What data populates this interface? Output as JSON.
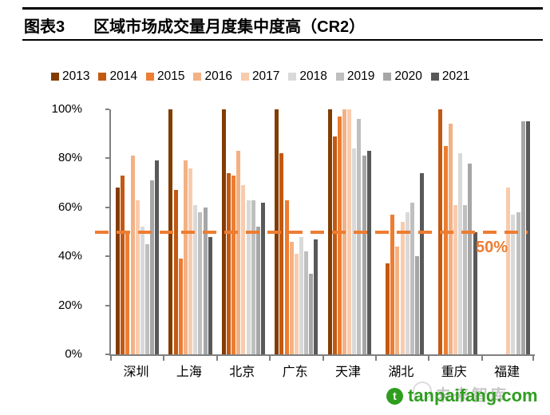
{
  "header": {
    "label": "图表3",
    "title": "区域市场成交量月度集中度高（CR2）"
  },
  "chart_data": {
    "type": "bar",
    "title": "区域市场成交量月度集中度高（CR2）",
    "categories": [
      "深圳",
      "上海",
      "北京",
      "广东",
      "天津",
      "湖北",
      "重庆",
      "福建"
    ],
    "series": [
      {
        "name": "2013",
        "color": "#833C00",
        "values": [
          68,
          100,
          100,
          100,
          100,
          null,
          null,
          null
        ]
      },
      {
        "name": "2014",
        "color": "#C45911",
        "values": [
          73,
          67,
          74,
          82,
          89,
          37,
          100,
          null
        ]
      },
      {
        "name": "2015",
        "color": "#ED7D31",
        "values": [
          50,
          39,
          73,
          63,
          97,
          57,
          85,
          null
        ]
      },
      {
        "name": "2016",
        "color": "#F4B183",
        "values": [
          81,
          79,
          83,
          46,
          100,
          44,
          94,
          null
        ]
      },
      {
        "name": "2017",
        "color": "#F8CBAD",
        "values": [
          63,
          76,
          69,
          41,
          100,
          54,
          61,
          68
        ]
      },
      {
        "name": "2018",
        "color": "#D9D9D9",
        "values": [
          52,
          61,
          63,
          48,
          84,
          58,
          82,
          57
        ]
      },
      {
        "name": "2019",
        "color": "#BFBFBF",
        "values": [
          45,
          58,
          63,
          42,
          96,
          62,
          61,
          58
        ]
      },
      {
        "name": "2020",
        "color": "#A6A6A6",
        "values": [
          71,
          60,
          52,
          33,
          81,
          40,
          78,
          95
        ]
      },
      {
        "name": "2021",
        "color": "#595959",
        "values": [
          79,
          48,
          62,
          47,
          83,
          74,
          50,
          95
        ]
      }
    ],
    "y_ticks": [
      "100%",
      "80%",
      "60%",
      "40%",
      "20%",
      "0%"
    ],
    "ylim": [
      0,
      100
    ],
    "grid": false,
    "legend_position": "top",
    "reference_line": {
      "value": 50,
      "label": "50%",
      "color": "#ED7D31",
      "style": "dashed"
    },
    "axis_color": "#808080"
  },
  "watermark": {
    "site": "tanpaifang.com",
    "logo_glyph": "t",
    "faint_text": "未来智库"
  }
}
